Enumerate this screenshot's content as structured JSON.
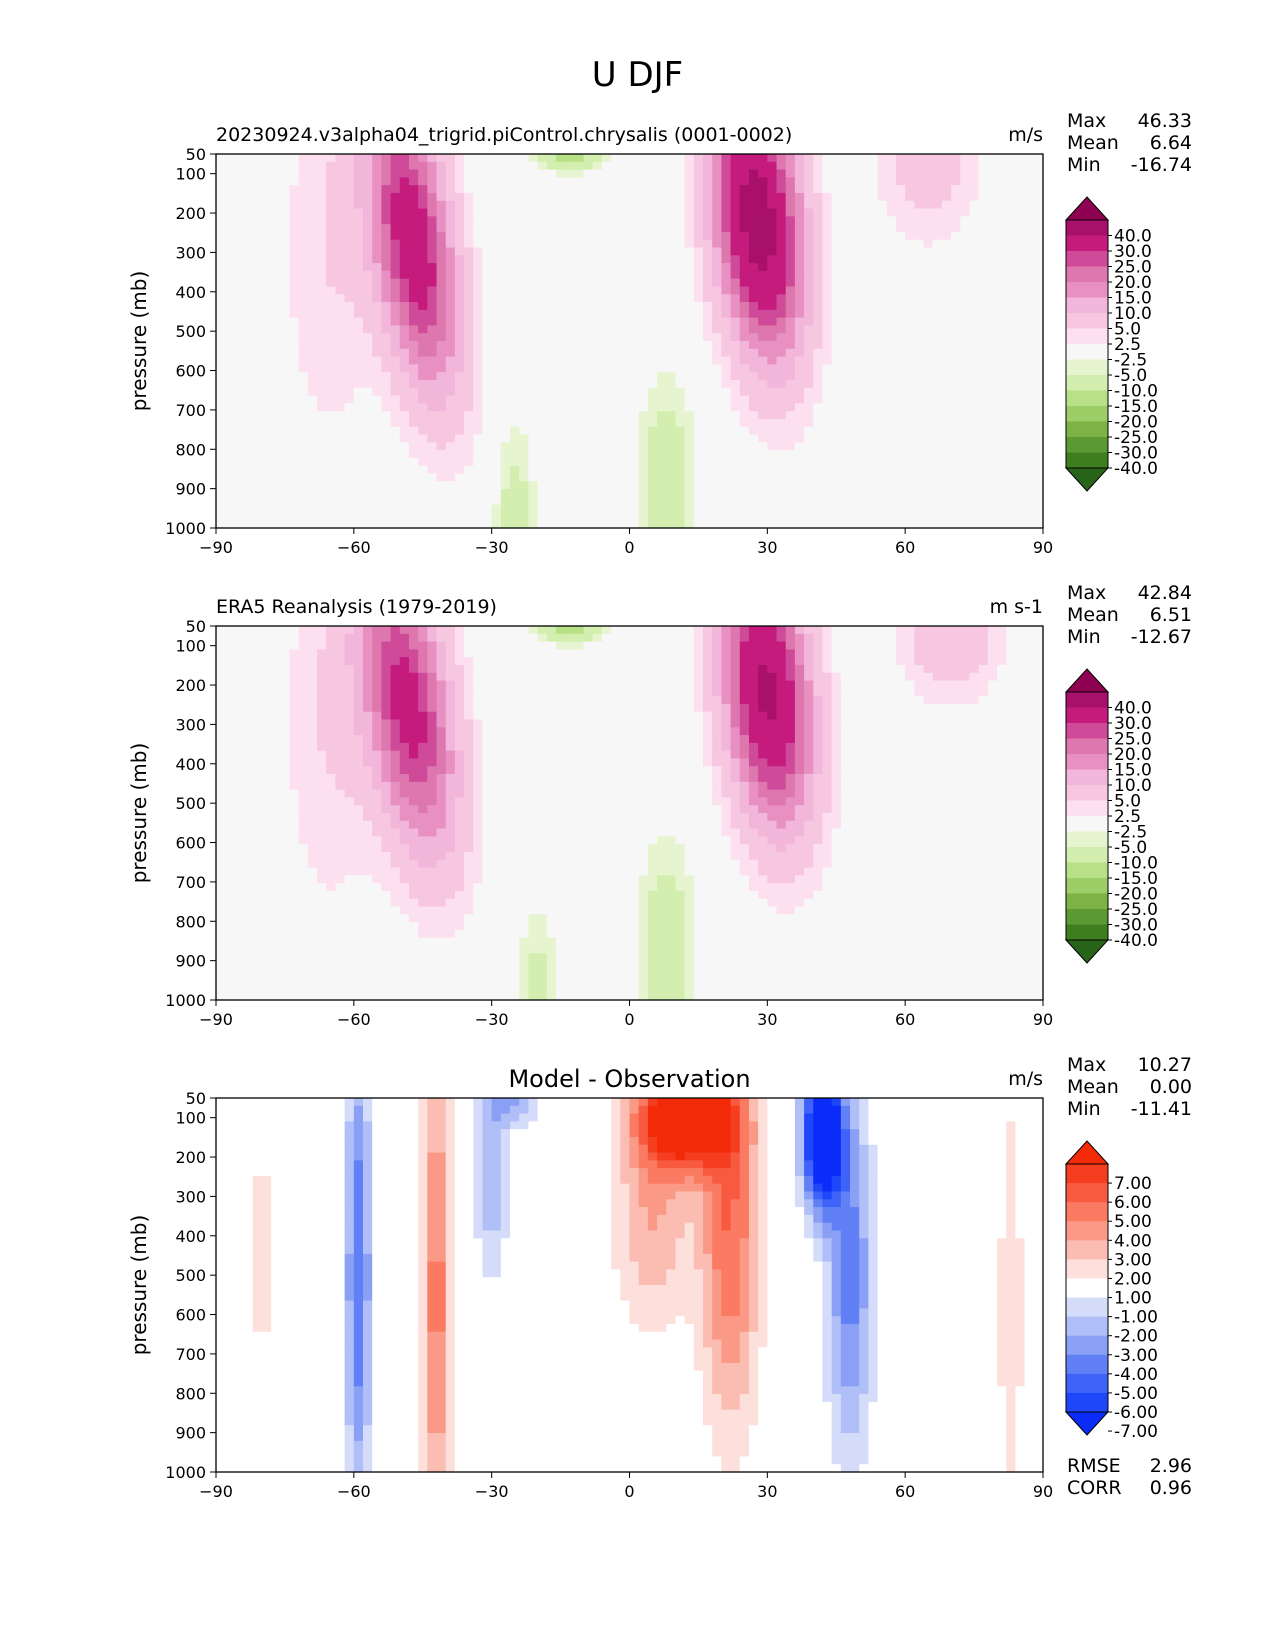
{
  "figure": {
    "title": "U DJF"
  },
  "chart_data": [
    {
      "type": "heatmap",
      "subplot": "test",
      "title": "",
      "left_title": "20230924.v3alpha04_trigrid.piControl.chrysalis (0001-0002)",
      "right_title": "m/s",
      "xlabel": "",
      "ylabel": "pressure (mb)",
      "xlim": [
        -90,
        90
      ],
      "ylim": [
        1000,
        50
      ],
      "x_ticks": [
        -90,
        -60,
        -30,
        0,
        30,
        60,
        90
      ],
      "x_tick_labels": [
        "−90",
        "−60",
        "−30",
        "0",
        "30",
        "60",
        "90"
      ],
      "y_ticks": [
        50,
        100,
        200,
        300,
        400,
        500,
        600,
        700,
        800,
        900,
        1000
      ],
      "y_tick_labels": [
        "50",
        "100",
        "200",
        "300",
        "400",
        "500",
        "600",
        "700",
        "800",
        "900",
        "1000"
      ],
      "stats": [
        {
          "label": "Max",
          "value": "46.33"
        },
        {
          "label": "Mean",
          "value": "6.64"
        },
        {
          "label": "Min",
          "value": "-16.74"
        }
      ],
      "colormap": "PiYG_r",
      "colorbar_levels": [
        -50,
        -40,
        -30,
        -25,
        -20,
        -15,
        -10,
        -5,
        -2.5,
        2.5,
        5,
        10,
        15,
        20,
        25,
        30,
        40,
        50
      ],
      "colorbar_tick_labels": [
        "40.0",
        "30.0",
        "25.0",
        "20.0",
        "15.0",
        "10.0",
        "5.0",
        "2.5",
        "-2.5",
        "-5.0",
        "-10.0",
        "-15.0",
        "-20.0",
        "-25.0",
        "-30.0",
        "-40.0"
      ],
      "colorbar_colors": [
        "#276419",
        "#3e7e1f",
        "#5b9a32",
        "#7cb344",
        "#9ccd66",
        "#b8e086",
        "#d3eeaf",
        "#e6f5d0",
        "#f7f7f7",
        "#fde0ef",
        "#f7c6e1",
        "#f1b6da",
        "#e990c2",
        "#de77ae",
        "#cf4a98",
        "#c51b7d",
        "#a8106b",
        "#8e0152"
      ],
      "features": [
        {
          "lat": -47,
          "p": 280,
          "value": 36,
          "lat_width": 12,
          "p_width": 520,
          "lat_shift_per_100mb": 1.2
        },
        {
          "lat": 28,
          "p": 220,
          "value": 46,
          "lat_width": 13,
          "p_width": 480,
          "lat_shift_per_100mb": 0.8
        },
        {
          "lat": -25,
          "p": 950,
          "value": -7,
          "lat_width": 6,
          "p_width": 300
        },
        {
          "lat": 8,
          "p": 900,
          "value": -10,
          "lat_width": 8,
          "p_width": 350
        },
        {
          "lat": -13,
          "p": 50,
          "value": -12,
          "lat_width": 10,
          "p_width": 60
        },
        {
          "lat": 65,
          "p": 50,
          "value": 8,
          "lat_width": 15,
          "p_width": 300
        },
        {
          "lat": -65,
          "p": 300,
          "value": 5,
          "lat_width": 15,
          "p_width": 700
        }
      ]
    },
    {
      "type": "heatmap",
      "subplot": "reference",
      "title": "",
      "left_title": "ERA5 Reanalysis (1979-2019)",
      "right_title": "m s-1",
      "xlabel": "",
      "ylabel": "pressure (mb)",
      "xlim": [
        -90,
        90
      ],
      "ylim": [
        1000,
        50
      ],
      "x_ticks": [
        -90,
        -60,
        -30,
        0,
        30,
        60,
        90
      ],
      "x_tick_labels": [
        "−90",
        "−60",
        "−30",
        "0",
        "30",
        "60",
        "90"
      ],
      "y_ticks": [
        50,
        100,
        200,
        300,
        400,
        500,
        600,
        700,
        800,
        900,
        1000
      ],
      "y_tick_labels": [
        "50",
        "100",
        "200",
        "300",
        "400",
        "500",
        "600",
        "700",
        "800",
        "900",
        "1000"
      ],
      "stats": [
        {
          "label": "Max",
          "value": "42.84"
        },
        {
          "label": "Mean",
          "value": "6.51"
        },
        {
          "label": "Min",
          "value": "-12.67"
        }
      ],
      "colormap": "PiYG_r",
      "colorbar_levels": [
        -50,
        -40,
        -30,
        -25,
        -20,
        -15,
        -10,
        -5,
        -2.5,
        2.5,
        5,
        10,
        15,
        20,
        25,
        30,
        40,
        50
      ],
      "colorbar_tick_labels": [
        "40.0",
        "30.0",
        "25.0",
        "20.0",
        "15.0",
        "10.0",
        "5.0",
        "2.5",
        "-2.5",
        "-5.0",
        "-10.0",
        "-15.0",
        "-20.0",
        "-25.0",
        "-30.0",
        "-40.0"
      ],
      "colorbar_colors": [
        "#276419",
        "#3e7e1f",
        "#5b9a32",
        "#7cb344",
        "#9ccd66",
        "#b8e086",
        "#d3eeaf",
        "#e6f5d0",
        "#f7f7f7",
        "#fde0ef",
        "#f7c6e1",
        "#f1b6da",
        "#e990c2",
        "#de77ae",
        "#cf4a98",
        "#c51b7d",
        "#a8106b",
        "#8e0152"
      ],
      "features": [
        {
          "lat": -48,
          "p": 260,
          "value": 33,
          "lat_width": 13,
          "p_width": 520,
          "lat_shift_per_100mb": 1.2
        },
        {
          "lat": 30,
          "p": 220,
          "value": 42,
          "lat_width": 13,
          "p_width": 470,
          "lat_shift_per_100mb": 0.8
        },
        {
          "lat": -20,
          "p": 950,
          "value": -6,
          "lat_width": 6,
          "p_width": 260
        },
        {
          "lat": 8,
          "p": 880,
          "value": -9,
          "lat_width": 8,
          "p_width": 380
        },
        {
          "lat": -13,
          "p": 50,
          "value": -12,
          "lat_width": 10,
          "p_width": 60
        },
        {
          "lat": 70,
          "p": 50,
          "value": 10,
          "lat_width": 15,
          "p_width": 250
        },
        {
          "lat": -65,
          "p": 300,
          "value": 5,
          "lat_width": 15,
          "p_width": 700
        }
      ]
    },
    {
      "type": "heatmap",
      "subplot": "difference",
      "title": "Model - Observation",
      "left_title": "",
      "right_title": "m/s",
      "xlabel": "",
      "ylabel": "pressure (mb)",
      "xlim": [
        -90,
        90
      ],
      "ylim": [
        1000,
        50
      ],
      "x_ticks": [
        -90,
        -60,
        -30,
        0,
        30,
        60,
        90
      ],
      "x_tick_labels": [
        "−90",
        "−60",
        "−30",
        "0",
        "30",
        "60",
        "90"
      ],
      "y_ticks": [
        50,
        100,
        200,
        300,
        400,
        500,
        600,
        700,
        800,
        900,
        1000
      ],
      "y_tick_labels": [
        "50",
        "100",
        "200",
        "300",
        "400",
        "500",
        "600",
        "700",
        "800",
        "900",
        "1000"
      ],
      "stats": [
        {
          "label": "Max",
          "value": "10.27"
        },
        {
          "label": "Mean",
          "value": "0.00"
        },
        {
          "label": "Min",
          "value": "-11.41"
        }
      ],
      "metrics": [
        {
          "label": "RMSE",
          "value": "2.96"
        },
        {
          "label": "CORR",
          "value": "0.96"
        }
      ],
      "colormap": "bwr",
      "colorbar_levels": [
        -9,
        -7,
        -6,
        -5,
        -4,
        -3,
        -2,
        -1,
        1,
        2,
        3,
        4,
        5,
        6,
        7,
        9
      ],
      "colorbar_tick_labels": [
        "7.00",
        "6.00",
        "5.00",
        "4.00",
        "3.00",
        "2.00",
        "1.00",
        "-1.00",
        "-2.00",
        "-3.00",
        "-4.00",
        "-5.00",
        "-6.00",
        "-7.00"
      ],
      "colorbar_colors": [
        "#0a2bf8",
        "#1f47fa",
        "#3f62f8",
        "#6180f6",
        "#8aa0f5",
        "#b0bff8",
        "#d5dcfa",
        "#ffffff",
        "#fde0dc",
        "#fbbdb2",
        "#fa9986",
        "#fa7a62",
        "#f85a40",
        "#f53e1f",
        "#f22a08"
      ],
      "features": [
        {
          "lat": 12,
          "p": 100,
          "value": 10,
          "lat_width": 14,
          "p_width": 180
        },
        {
          "lat": 22,
          "p": 380,
          "value": 5,
          "lat_width": 9,
          "p_width": 700
        },
        {
          "lat": 5,
          "p": 350,
          "value": 3,
          "lat_width": 12,
          "p_width": 400
        },
        {
          "lat": 42,
          "p": 150,
          "value": -11,
          "lat_width": 6,
          "p_width": 250
        },
        {
          "lat": 48,
          "p": 500,
          "value": -4.5,
          "lat_width": 7,
          "p_width": 650
        },
        {
          "lat": -42,
          "p": 550,
          "value": 4.5,
          "lat_width": 4.5,
          "p_width": 900
        },
        {
          "lat": -59,
          "p": 500,
          "value": -5,
          "lat_width": 4,
          "p_width": 850
        },
        {
          "lat": -30,
          "p": 250,
          "value": -3,
          "lat_width": 5,
          "p_width": 350
        },
        {
          "lat": -25,
          "p": 50,
          "value": -3,
          "lat_width": 8,
          "p_width": 100
        },
        {
          "lat": -80,
          "p": 450,
          "value": 1.8,
          "lat_width": 5,
          "p_width": 400
        },
        {
          "lat": 83,
          "p": 600,
          "value": 1.8,
          "lat_width": 4,
          "p_width": 900
        }
      ]
    }
  ]
}
